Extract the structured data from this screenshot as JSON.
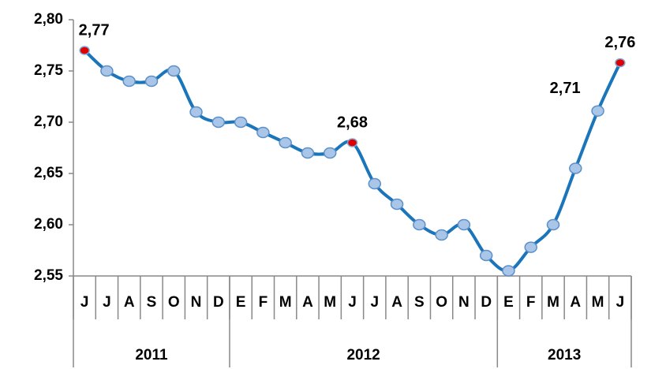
{
  "chart_data": {
    "type": "line",
    "categories": [
      "J",
      "J",
      "A",
      "S",
      "O",
      "N",
      "D",
      "E",
      "F",
      "M",
      "A",
      "M",
      "J",
      "J",
      "A",
      "S",
      "O",
      "N",
      "D",
      "E",
      "F",
      "M",
      "A",
      "M",
      "J"
    ],
    "year_groups": [
      {
        "label": "2011",
        "span": 7
      },
      {
        "label": "2012",
        "span": 12
      },
      {
        "label": "2013",
        "span": 6
      }
    ],
    "series": [
      {
        "color": "#1a75bb",
        "marker_color": "#a9c6e8",
        "highlight_color": "#e00000",
        "highlight": [
          0,
          12,
          24
        ],
        "values": [
          2.77,
          2.75,
          2.74,
          2.74,
          2.75,
          2.71,
          2.7,
          2.7,
          2.69,
          2.68,
          2.67,
          2.67,
          2.68,
          2.64,
          2.62,
          2.6,
          2.59,
          2.6,
          2.57,
          2.555,
          2.578,
          2.6,
          2.655,
          2.711,
          2.758
        ],
        "value_labels": [
          "2,77",
          null,
          null,
          null,
          null,
          null,
          null,
          null,
          null,
          null,
          null,
          null,
          "2,68",
          null,
          null,
          null,
          null,
          null,
          null,
          null,
          null,
          null,
          null,
          "2,71",
          "2,76"
        ]
      }
    ],
    "ylim": [
      2.55,
      2.8
    ],
    "yticks": [
      {
        "value": 2.55,
        "label": "2,55"
      },
      {
        "value": 2.6,
        "label": "2,60"
      },
      {
        "value": 2.65,
        "label": "2,65"
      },
      {
        "value": 2.7,
        "label": "2,70"
      },
      {
        "value": 2.75,
        "label": "2,75"
      },
      {
        "value": 2.8,
        "label": "2,80"
      }
    ],
    "grid": false
  }
}
